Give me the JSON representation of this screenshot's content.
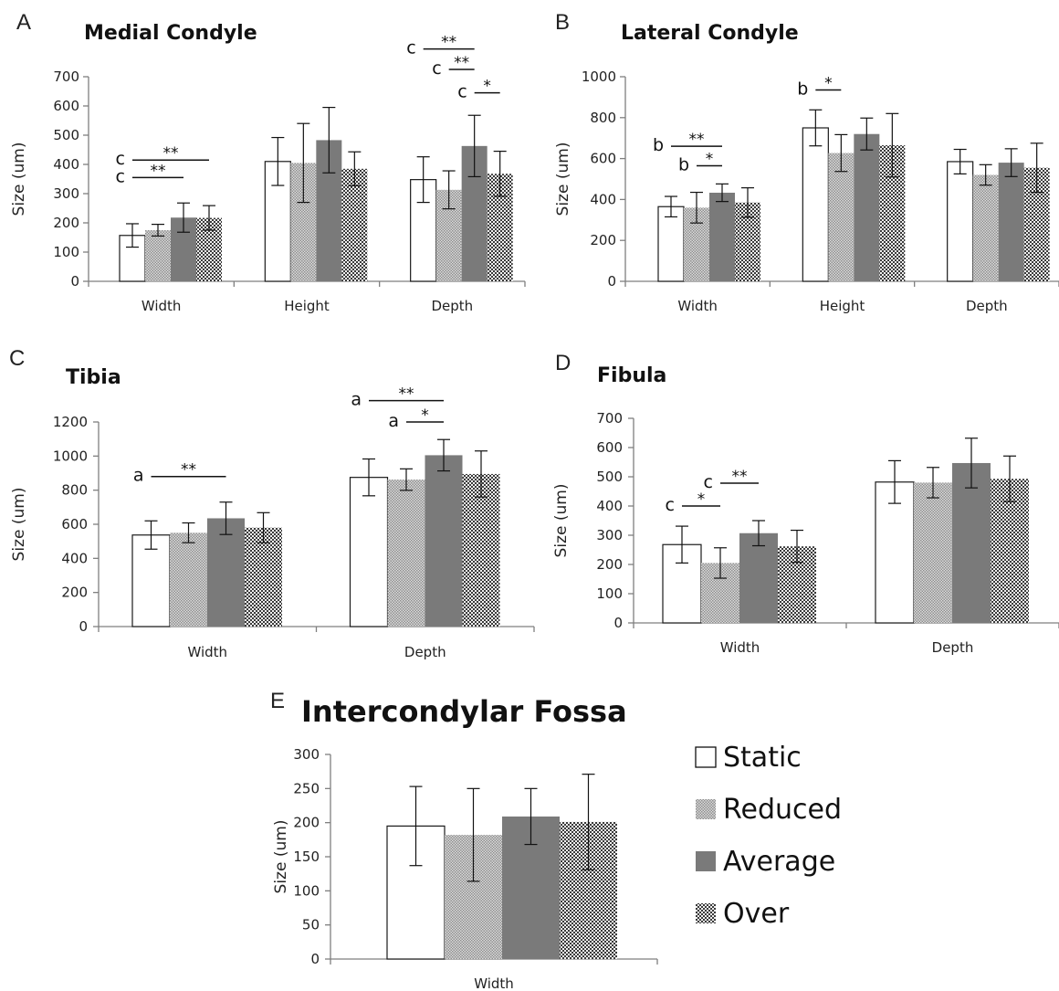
{
  "figure": {
    "legend": {
      "entries": [
        {
          "name": "Static",
          "pattern": "white"
        },
        {
          "name": "Reduced",
          "pattern": "dots"
        },
        {
          "name": "Average",
          "pattern": "solid"
        },
        {
          "name": "Over",
          "pattern": "checker"
        }
      ]
    }
  },
  "colors": {
    "axis": "#7f7f7f",
    "bar_outline": "#1a1a1a",
    "average_fill": "#7a7a7a",
    "reduced_dot": "#9a9a9a",
    "over_dark": "#3a3a3a",
    "text": "#111111"
  },
  "chart_data": [
    {
      "panel": "A",
      "type": "bar",
      "title": "Medial Condyle",
      "ylabel": "Size (um)",
      "xlabel": "",
      "categories": [
        "Width",
        "Height",
        "Depth"
      ],
      "ylim": [
        0,
        700
      ],
      "yticks": [
        0,
        100,
        200,
        300,
        400,
        500,
        600,
        700
      ],
      "series": [
        {
          "name": "Static",
          "values": [
            157,
            410,
            348
          ],
          "errors": [
            40,
            82,
            78
          ]
        },
        {
          "name": "Reduced",
          "values": [
            175,
            405,
            313
          ],
          "errors": [
            20,
            135,
            65
          ]
        },
        {
          "name": "Average",
          "values": [
            218,
            483,
            463
          ],
          "errors": [
            50,
            112,
            105
          ]
        },
        {
          "name": "Over",
          "values": [
            217,
            385,
            368
          ],
          "errors": [
            42,
            58,
            77
          ]
        }
      ],
      "significance": [
        {
          "category": "Width",
          "from": 0,
          "to": 3,
          "letter": "c",
          "stars": "**",
          "y": 415
        },
        {
          "category": "Width",
          "from": 0,
          "to": 2,
          "letter": "c",
          "stars": "**",
          "y": 355
        },
        {
          "category": "Depth",
          "from": 0,
          "to": 2,
          "letter": "c",
          "stars": "**",
          "y": 795
        },
        {
          "category": "Depth",
          "from": 1,
          "to": 2,
          "letter": "c",
          "stars": "**",
          "y": 725
        },
        {
          "category": "Depth",
          "from": 2,
          "to": 3,
          "letter": "c",
          "stars": "*",
          "y": 645
        }
      ]
    },
    {
      "panel": "B",
      "type": "bar",
      "title": "Lateral Condyle",
      "ylabel": "Size (um)",
      "xlabel": "",
      "categories": [
        "Width",
        "Height",
        "Depth"
      ],
      "ylim": [
        0,
        1000
      ],
      "yticks": [
        0,
        200,
        400,
        600,
        800,
        1000
      ],
      "series": [
        {
          "name": "Static",
          "values": [
            365,
            750,
            585
          ],
          "errors": [
            50,
            88,
            60
          ]
        },
        {
          "name": "Reduced",
          "values": [
            360,
            627,
            520
          ],
          "errors": [
            75,
            90,
            50
          ]
        },
        {
          "name": "Average",
          "values": [
            433,
            720,
            580
          ],
          "errors": [
            43,
            78,
            68
          ]
        },
        {
          "name": "Over",
          "values": [
            385,
            665,
            555
          ],
          "errors": [
            72,
            155,
            120
          ]
        }
      ],
      "significance": [
        {
          "category": "Width",
          "from": 0,
          "to": 2,
          "letter": "b",
          "stars": "**",
          "y": 660
        },
        {
          "category": "Width",
          "from": 1,
          "to": 2,
          "letter": "b",
          "stars": "*",
          "y": 565
        },
        {
          "category": "Height",
          "from": 0,
          "to": 1,
          "letter": "b",
          "stars": "*",
          "y": 935
        }
      ]
    },
    {
      "panel": "C",
      "type": "bar",
      "title": "Tibia",
      "ylabel": "Size (um)",
      "xlabel": "",
      "categories": [
        "Width",
        "Depth"
      ],
      "ylim": [
        0,
        1200
      ],
      "yticks": [
        0,
        200,
        400,
        600,
        800,
        1000,
        1200
      ],
      "series": [
        {
          "name": "Static",
          "values": [
            537,
            875
          ],
          "errors": [
            83,
            108
          ]
        },
        {
          "name": "Reduced",
          "values": [
            550,
            862
          ],
          "errors": [
            58,
            63
          ]
        },
        {
          "name": "Average",
          "values": [
            635,
            1005
          ],
          "errors": [
            95,
            92
          ]
        },
        {
          "name": "Over",
          "values": [
            580,
            895
          ],
          "errors": [
            88,
            135
          ]
        }
      ],
      "significance": [
        {
          "category": "Width",
          "from": 0,
          "to": 2,
          "letter": "a",
          "stars": "**",
          "y": 880
        },
        {
          "category": "Depth",
          "from": 0,
          "to": 2,
          "letter": "a",
          "stars": "**",
          "y": 1325
        },
        {
          "category": "Depth",
          "from": 1,
          "to": 2,
          "letter": "a",
          "stars": "*",
          "y": 1200
        }
      ]
    },
    {
      "panel": "D",
      "type": "bar",
      "title": "Fibula",
      "ylabel": "Size (um)",
      "xlabel": "",
      "categories": [
        "Width",
        "Depth"
      ],
      "ylim": [
        0,
        700
      ],
      "yticks": [
        0,
        100,
        200,
        300,
        400,
        500,
        600,
        700
      ],
      "series": [
        {
          "name": "Static",
          "values": [
            268,
            482
          ],
          "errors": [
            63,
            73
          ]
        },
        {
          "name": "Reduced",
          "values": [
            205,
            480
          ],
          "errors": [
            52,
            52
          ]
        },
        {
          "name": "Average",
          "values": [
            307,
            547
          ],
          "errors": [
            43,
            85
          ]
        },
        {
          "name": "Over",
          "values": [
            262,
            493
          ],
          "errors": [
            55,
            78
          ]
        }
      ],
      "significance": [
        {
          "category": "Width",
          "from": 0,
          "to": 1,
          "letter": "c",
          "stars": "*",
          "y": 400
        },
        {
          "category": "Width",
          "from": 1,
          "to": 2,
          "letter": "c",
          "stars": "**",
          "y": 478
        }
      ]
    },
    {
      "panel": "E",
      "type": "bar",
      "title": "Intercondylar Fossa",
      "ylabel": "Size (um)",
      "xlabel": "",
      "categories": [
        "Width"
      ],
      "ylim": [
        0,
        300
      ],
      "yticks": [
        0,
        50,
        100,
        150,
        200,
        250,
        300
      ],
      "series": [
        {
          "name": "Static",
          "values": [
            195
          ],
          "errors": [
            58
          ]
        },
        {
          "name": "Reduced",
          "values": [
            182
          ],
          "errors": [
            68
          ]
        },
        {
          "name": "Average",
          "values": [
            209
          ],
          "errors": [
            41
          ]
        },
        {
          "name": "Over",
          "values": [
            201
          ],
          "errors": [
            70
          ]
        }
      ],
      "significance": []
    }
  ]
}
